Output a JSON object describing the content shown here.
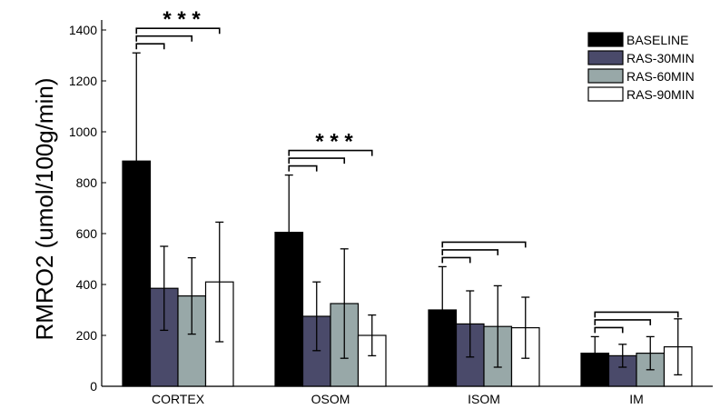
{
  "chart_data": {
    "type": "bar",
    "title": "",
    "xlabel": "",
    "ylabel": "RMRO2 (umol/100g/min)",
    "ylim": [
      0,
      1400
    ],
    "yticks": [
      0,
      200,
      400,
      600,
      800,
      1000,
      1200,
      1400
    ],
    "grid": false,
    "legend_position": "top-right",
    "categories": [
      "CORTEX",
      "OSOM",
      "ISOM",
      "IM"
    ],
    "series": [
      {
        "name": "BASELINE",
        "color": "#000000",
        "values": [
          885,
          605,
          300,
          130
        ],
        "errors": [
          425,
          225,
          170,
          65
        ]
      },
      {
        "name": "RAS-30MIN",
        "color": "#4a4a6a",
        "values": [
          385,
          275,
          245,
          120
        ],
        "errors": [
          165,
          135,
          130,
          45
        ]
      },
      {
        "name": "RAS-60MIN",
        "color": "#98a8a8",
        "values": [
          355,
          325,
          235,
          130
        ],
        "errors": [
          150,
          215,
          160,
          65
        ]
      },
      {
        "name": "RAS-90MIN",
        "color": "#ffffff",
        "values": [
          410,
          200,
          230,
          155
        ],
        "errors": [
          235,
          80,
          120,
          110
        ]
      }
    ],
    "significance": [
      {
        "category": "CORTEX",
        "label": "* * *",
        "comparisons": [
          "RAS-30MIN",
          "RAS-60MIN",
          "RAS-90MIN"
        ]
      },
      {
        "category": "OSOM",
        "label": "* * *",
        "comparisons": [
          "RAS-30MIN",
          "RAS-60MIN",
          "RAS-90MIN"
        ]
      },
      {
        "category": "ISOM",
        "label": "",
        "comparisons": [
          "RAS-30MIN",
          "RAS-60MIN",
          "RAS-90MIN"
        ]
      },
      {
        "category": "IM",
        "label": "",
        "comparisons": [
          "RAS-30MIN",
          "RAS-60MIN",
          "RAS-90MIN"
        ]
      }
    ]
  }
}
